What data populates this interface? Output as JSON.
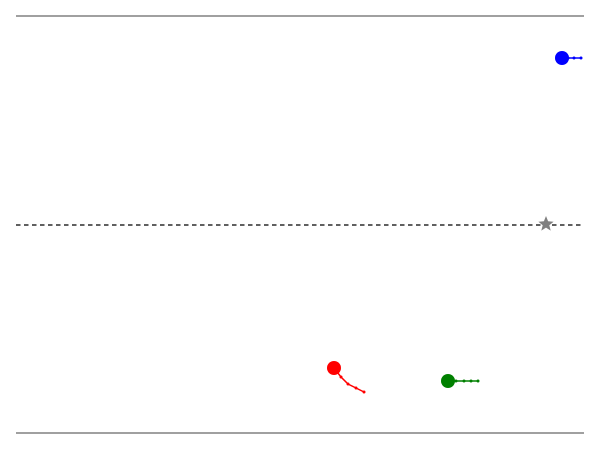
{
  "scene": {
    "lines": [
      {
        "id": "top-boundary",
        "style": "solid",
        "color": "#000000"
      },
      {
        "id": "center-line",
        "style": "dashed",
        "color": "#000000"
      },
      {
        "id": "bottom-boundary",
        "style": "solid",
        "color": "#000000"
      }
    ],
    "target": {
      "shape": "star",
      "color": "#808080"
    },
    "agents": [
      {
        "id": "blue",
        "color": "#0000ff",
        "trail_points": 4
      },
      {
        "id": "red",
        "color": "#ff0000",
        "trail_points": 4
      },
      {
        "id": "green",
        "color": "#008000",
        "trail_points": 4
      }
    ]
  }
}
